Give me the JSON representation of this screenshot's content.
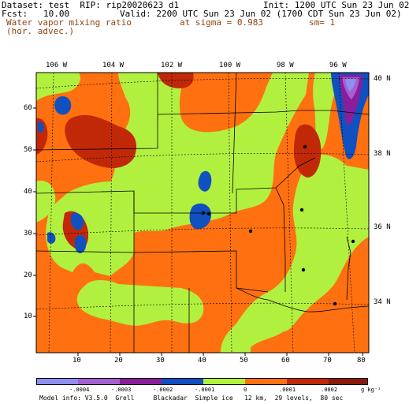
{
  "header": {
    "line1_left": "Dataset: test  RIP: rip20020623 d1",
    "line1_right": "Init: 1200 UTC Sun 23 Jun 02",
    "line2_left": "Fcst:   10.00",
    "line2_right": "Valid: 2200 UTC Sun 23 Jun 02 (1700 CDT Sun 23 Jun 02)",
    "field_name": "Water vapor mixing ratio",
    "field_sub": "(hor. advec.)",
    "level": "at sigma = 0.983",
    "smoothing": "sm= 1"
  },
  "longitude_labels": [
    "106 W",
    "104 W",
    "102 W",
    "100 W",
    "98 W",
    "96 W"
  ],
  "latitude_labels": [
    "40 N",
    "38 N",
    "36 N",
    "34 N"
  ],
  "y_axis_ticks": [
    "60",
    "50",
    "40",
    "30",
    "20",
    "10"
  ],
  "x_axis_ticks": [
    "10",
    "20",
    "30",
    "40",
    "50",
    "60",
    "70",
    "80"
  ],
  "colorbar": {
    "labels": [
      "-.0004",
      "-.0003",
      "-.0002",
      "-.0001",
      "0",
      ".0001",
      ".0002"
    ],
    "units": "g kg⁻¹",
    "colors": [
      "#8f8ef2",
      "#a45fd0",
      "#8a1e9a",
      "#1050c0",
      "#b2f040",
      "#ff7010",
      "#c02808",
      "#8b1a0a"
    ]
  },
  "footer": "Model info: V3.5.0  Grell     Blackadar  Simple ice   12 km,  29 levels,  80 sec"
}
